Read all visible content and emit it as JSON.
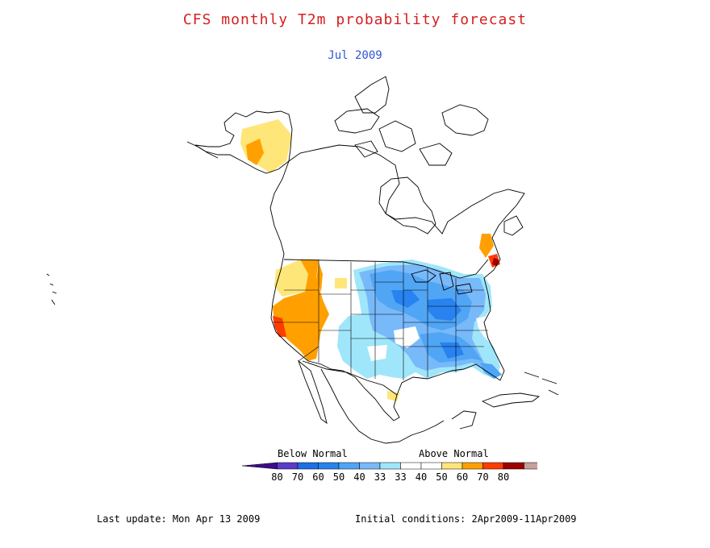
{
  "title": "CFS monthly T2m probability forecast",
  "subtitle": "Jul 2009",
  "colors": {
    "title": "#d42020",
    "subtitle": "#2f55d4",
    "below": [
      "#a0e6fa",
      "#78b9fa",
      "#50a5f5",
      "#2882f0",
      "#1e6ee6",
      "#5a3cc8",
      "#3c0c8c"
    ],
    "near": "#ffffff",
    "above": [
      "#ffe678",
      "#ffa000",
      "#ff3c00",
      "#a00000",
      "#c8a09a",
      "#784632"
    ]
  },
  "legend": {
    "below_label": "Below Normal",
    "above_label": "Above Normal",
    "ticks": [
      "80",
      "70",
      "60",
      "50",
      "40",
      "33",
      "33",
      "40",
      "50",
      "60",
      "70",
      "80"
    ]
  },
  "footer": {
    "last_update": "Last update: Mon Apr 13 2009",
    "initial_conditions": "Initial conditions: 2Apr2009-11Apr2009"
  }
}
